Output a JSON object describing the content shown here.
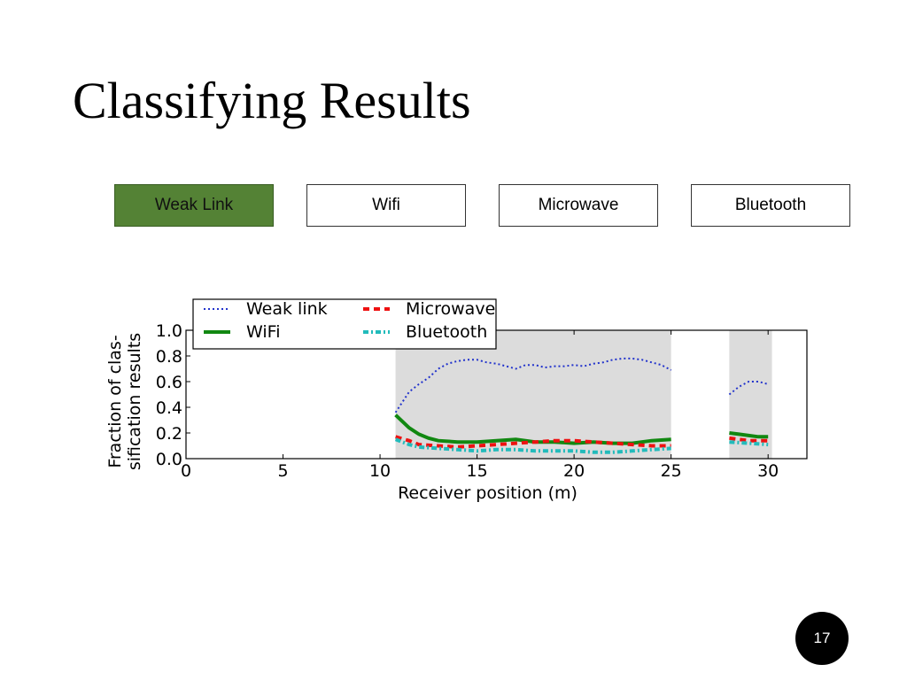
{
  "slide": {
    "title": "Classifying Results",
    "page_number": "17"
  },
  "buttons": [
    {
      "label": "Weak Link",
      "active": true,
      "color": "#548235"
    },
    {
      "label": "Wifi",
      "active": false
    },
    {
      "label": "Microwave",
      "active": false
    },
    {
      "label": "Bluetooth",
      "active": false
    }
  ],
  "chart_data": {
    "type": "line",
    "xlabel": "Receiver position (m)",
    "ylabel": "Fraction of clas-\nsification results",
    "xlim": [
      0,
      32
    ],
    "ylim": [
      0,
      1.0
    ],
    "xticks": [
      "0",
      "5",
      "10",
      "15",
      "20",
      "25",
      "30"
    ],
    "yticks": [
      "0.0",
      "0.2",
      "0.4",
      "0.6",
      "0.8",
      "1.0"
    ],
    "legend_position": "top-left",
    "shaded_regions": [
      [
        10.8,
        25
      ],
      [
        28,
        30.2
      ]
    ],
    "shade_color": "#dcdcdc",
    "series": [
      {
        "name": "Weak link",
        "color": "#2233cc",
        "style": "dotted",
        "segments": [
          [
            [
              10.8,
              0.36
            ],
            [
              11.5,
              0.52
            ],
            [
              12,
              0.58
            ],
            [
              12.5,
              0.63
            ],
            [
              13,
              0.7
            ],
            [
              13.5,
              0.74
            ],
            [
              14,
              0.76
            ],
            [
              14.5,
              0.77
            ],
            [
              15,
              0.77
            ],
            [
              15.5,
              0.75
            ],
            [
              16,
              0.74
            ],
            [
              16.5,
              0.72
            ],
            [
              17,
              0.7
            ],
            [
              17.5,
              0.73
            ],
            [
              18,
              0.73
            ],
            [
              18.5,
              0.71
            ],
            [
              19,
              0.72
            ],
            [
              19.5,
              0.72
            ],
            [
              20,
              0.73
            ],
            [
              20.5,
              0.72
            ],
            [
              21,
              0.74
            ],
            [
              21.5,
              0.75
            ],
            [
              22,
              0.77
            ],
            [
              22.5,
              0.78
            ],
            [
              23,
              0.78
            ],
            [
              23.5,
              0.77
            ],
            [
              24,
              0.75
            ],
            [
              24.5,
              0.73
            ],
            [
              25,
              0.69
            ]
          ],
          [
            [
              28,
              0.5
            ],
            [
              28.5,
              0.56
            ],
            [
              29,
              0.6
            ],
            [
              29.5,
              0.6
            ],
            [
              30,
              0.58
            ]
          ]
        ]
      },
      {
        "name": "WiFi",
        "color": "#118811",
        "style": "solid",
        "segments": [
          [
            [
              10.8,
              0.34
            ],
            [
              11.5,
              0.24
            ],
            [
              12,
              0.19
            ],
            [
              12.5,
              0.16
            ],
            [
              13,
              0.14
            ],
            [
              14,
              0.13
            ],
            [
              15,
              0.13
            ],
            [
              16,
              0.14
            ],
            [
              17,
              0.15
            ],
            [
              18,
              0.13
            ],
            [
              19,
              0.13
            ],
            [
              20,
              0.12
            ],
            [
              21,
              0.13
            ],
            [
              22,
              0.12
            ],
            [
              23,
              0.12
            ],
            [
              24,
              0.14
            ],
            [
              25,
              0.15
            ]
          ],
          [
            [
              28,
              0.2
            ],
            [
              28.5,
              0.19
            ],
            [
              29,
              0.18
            ],
            [
              29.5,
              0.17
            ],
            [
              30,
              0.17
            ]
          ]
        ]
      },
      {
        "name": "Microwave",
        "color": "#ee1111",
        "style": "dashed",
        "segments": [
          [
            [
              10.8,
              0.17
            ],
            [
              11.5,
              0.14
            ],
            [
              12,
              0.11
            ],
            [
              13,
              0.1
            ],
            [
              14,
              0.09
            ],
            [
              15,
              0.1
            ],
            [
              16,
              0.11
            ],
            [
              17,
              0.12
            ],
            [
              18,
              0.13
            ],
            [
              19,
              0.14
            ],
            [
              20,
              0.14
            ],
            [
              21,
              0.13
            ],
            [
              22,
              0.12
            ],
            [
              23,
              0.11
            ],
            [
              24,
              0.1
            ],
            [
              25,
              0.1
            ]
          ],
          [
            [
              28,
              0.16
            ],
            [
              29,
              0.14
            ],
            [
              30,
              0.14
            ]
          ]
        ]
      },
      {
        "name": "Bluetooth",
        "color": "#22bbbb",
        "style": "dashdot",
        "segments": [
          [
            [
              10.8,
              0.15
            ],
            [
              11.5,
              0.11
            ],
            [
              12,
              0.09
            ],
            [
              13,
              0.08
            ],
            [
              14,
              0.07
            ],
            [
              15,
              0.06
            ],
            [
              16,
              0.07
            ],
            [
              17,
              0.07
            ],
            [
              18,
              0.06
            ],
            [
              19,
              0.06
            ],
            [
              20,
              0.06
            ],
            [
              21,
              0.05
            ],
            [
              22,
              0.05
            ],
            [
              23,
              0.06
            ],
            [
              24,
              0.07
            ],
            [
              25,
              0.08
            ]
          ],
          [
            [
              28,
              0.13
            ],
            [
              29,
              0.12
            ],
            [
              30,
              0.11
            ]
          ]
        ]
      }
    ]
  }
}
